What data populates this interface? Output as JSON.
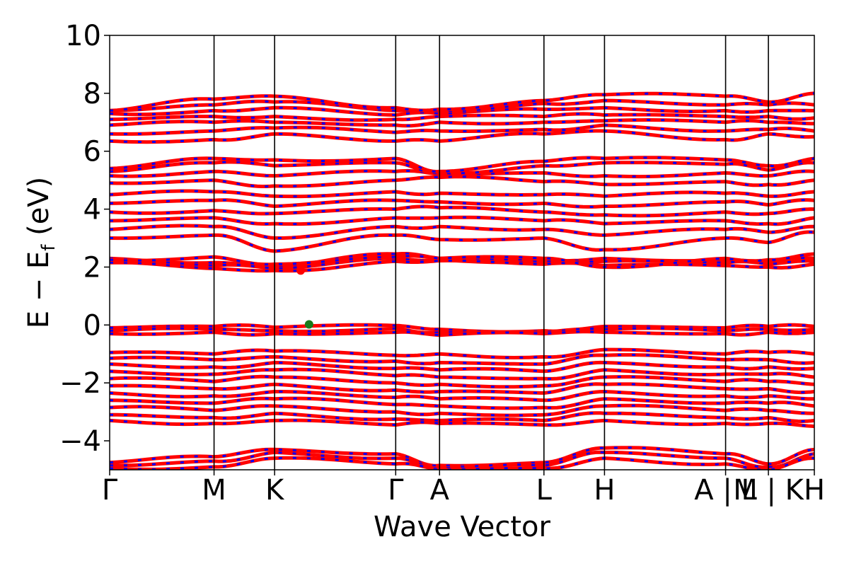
{
  "chart_data": {
    "type": "line",
    "title": "",
    "xlabel": "Wave Vector",
    "ylabel": "E − Ef (eV)",
    "ylabel_main": "E − E",
    "ylabel_sub": "f",
    "ylabel_tail": " (eV)",
    "xlim": [
      0,
      6.75
    ],
    "ylim": [
      -5,
      10
    ],
    "y_ticks": [
      -4,
      -2,
      0,
      2,
      4,
      6,
      8,
      10
    ],
    "y_tick_labels": [
      "−4",
      "−2",
      "0",
      "2",
      "4",
      "6",
      "8",
      "10"
    ],
    "kpoints": [
      {
        "label": "Γ",
        "x": 0.0
      },
      {
        "label": "M",
        "x": 1.0
      },
      {
        "label": "K",
        "x": 1.58
      },
      {
        "label": "Γ",
        "x": 2.74
      },
      {
        "label": "A",
        "x": 3.16
      },
      {
        "label": "L",
        "x": 4.16
      },
      {
        "label": "H",
        "x": 4.74
      },
      {
        "label": "A | L",
        "x": 5.9
      },
      {
        "label": "M | K",
        "x": 6.31
      },
      {
        "label": "H",
        "x": 6.75
      }
    ],
    "band_colors": [
      "#ff0000",
      "#0000ff"
    ],
    "markers": [
      {
        "name": "CBM",
        "x": 1.83,
        "y": 1.88,
        "color": "#ff0000"
      },
      {
        "name": "VBM",
        "x": 1.91,
        "y": 0.02,
        "color": "#1a7a1a"
      }
    ],
    "bands": [
      {
        "group": "semicore",
        "values": [
          -4.75,
          -4.55,
          -4.3,
          -4.45,
          -4.85,
          -4.75,
          -4.25,
          -4.45,
          -4.8,
          -4.3,
          -4.75
        ]
      },
      {
        "group": "semicore",
        "values": [
          -4.85,
          -4.7,
          -4.4,
          -4.6,
          -4.95,
          -4.85,
          -4.4,
          -4.6,
          -4.9,
          -4.45,
          -4.85
        ]
      },
      {
        "group": "semicore",
        "values": [
          -4.95,
          -4.9,
          -4.6,
          -4.8,
          -5.0,
          -4.95,
          -4.6,
          -4.8,
          -5.0,
          -4.6,
          -4.95
        ]
      },
      {
        "group": "valence",
        "values": [
          -0.95,
          -1.0,
          -0.9,
          -1.05,
          -1.0,
          -1.1,
          -0.85,
          -1.0,
          -0.95,
          -1.0,
          -0.9
        ]
      },
      {
        "group": "valence",
        "values": [
          -1.15,
          -1.2,
          -1.1,
          -1.25,
          -1.3,
          -1.35,
          -1.05,
          -1.2,
          -1.2,
          -1.3,
          -1.15
        ]
      },
      {
        "group": "valence",
        "values": [
          -1.35,
          -1.45,
          -1.3,
          -1.5,
          -1.55,
          -1.6,
          -1.3,
          -1.45,
          -1.45,
          -1.5,
          -1.4
        ]
      },
      {
        "group": "valence",
        "values": [
          -1.6,
          -1.7,
          -1.55,
          -1.75,
          -1.8,
          -1.85,
          -1.55,
          -1.7,
          -1.7,
          -1.8,
          -1.65
        ]
      },
      {
        "group": "valence",
        "values": [
          -1.85,
          -1.95,
          -1.8,
          -2.0,
          -2.05,
          -2.1,
          -1.8,
          -1.95,
          -1.95,
          -2.05,
          -1.9
        ]
      },
      {
        "group": "valence",
        "values": [
          -2.1,
          -2.2,
          -2.05,
          -2.25,
          -2.3,
          -2.35,
          -2.05,
          -2.2,
          -2.2,
          -2.3,
          -2.15
        ]
      },
      {
        "group": "valence",
        "values": [
          -2.35,
          -2.45,
          -2.3,
          -2.5,
          -2.55,
          -2.6,
          -2.3,
          -2.45,
          -2.45,
          -2.55,
          -2.4
        ]
      },
      {
        "group": "valence",
        "values": [
          -2.6,
          -2.7,
          -2.55,
          -2.75,
          -2.8,
          -2.85,
          -2.55,
          -2.7,
          -2.7,
          -2.8,
          -2.65
        ]
      },
      {
        "group": "valence",
        "values": [
          -2.85,
          -2.95,
          -2.8,
          -3.0,
          -3.05,
          -3.1,
          -2.8,
          -2.95,
          -2.95,
          -3.05,
          -2.9
        ]
      },
      {
        "group": "valence",
        "values": [
          -3.1,
          -3.2,
          -3.05,
          -3.25,
          -3.3,
          -3.3,
          -3.05,
          -3.2,
          -3.2,
          -3.3,
          -3.15
        ]
      },
      {
        "group": "valence",
        "values": [
          -3.3,
          -3.4,
          -3.3,
          -3.45,
          -3.4,
          -3.45,
          -3.3,
          -3.4,
          -3.4,
          -3.5,
          -3.35
        ]
      },
      {
        "group": "vbm",
        "values": [
          -0.1,
          -0.05,
          -0.08,
          -0.02,
          -0.15,
          -0.2,
          -0.05,
          -0.1,
          -0.05,
          -0.05,
          -0.05
        ]
      },
      {
        "group": "vbm",
        "values": [
          -0.2,
          -0.15,
          -0.2,
          -0.12,
          -0.25,
          -0.25,
          -0.15,
          -0.2,
          -0.15,
          -0.15,
          -0.15
        ]
      },
      {
        "group": "vbm",
        "values": [
          -0.3,
          -0.25,
          -0.3,
          -0.25,
          -0.35,
          -0.3,
          -0.25,
          -0.3,
          -0.25,
          -0.25,
          -0.25
        ]
      },
      {
        "group": "conduction",
        "values": [
          2.3,
          2.15,
          2.0,
          2.45,
          2.3,
          2.25,
          2.3,
          2.25,
          2.2,
          2.3,
          2.25
        ]
      },
      {
        "group": "conduction",
        "values": [
          2.2,
          2.05,
          1.95,
          2.3,
          2.25,
          2.2,
          2.2,
          2.15,
          2.1,
          2.2,
          2.15
        ]
      },
      {
        "group": "conduction",
        "values": [
          2.15,
          1.95,
          1.88,
          2.2,
          2.22,
          2.1,
          2.05,
          2.05,
          2.0,
          2.1,
          2.05
        ]
      },
      {
        "group": "conduction",
        "values": [
          2.25,
          2.35,
          2.1,
          2.35,
          2.3,
          2.3,
          2.0,
          2.3,
          2.25,
          2.45,
          2.3
        ]
      },
      {
        "group": "conduction",
        "values": [
          3.0,
          3.1,
          2.55,
          3.1,
          2.95,
          3.0,
          2.6,
          3.0,
          2.85,
          3.2,
          3.0
        ]
      },
      {
        "group": "conduction",
        "values": [
          3.3,
          3.4,
          3.0,
          3.4,
          3.4,
          3.3,
          3.1,
          3.3,
          3.2,
          3.4,
          3.3
        ]
      },
      {
        "group": "conduction",
        "values": [
          3.6,
          3.7,
          3.5,
          3.7,
          3.7,
          3.6,
          3.5,
          3.6,
          3.5,
          3.7,
          3.6
        ]
      },
      {
        "group": "conduction",
        "values": [
          3.9,
          3.95,
          3.85,
          4.0,
          4.05,
          3.9,
          3.8,
          3.9,
          3.85,
          4.0,
          3.9
        ]
      },
      {
        "group": "conduction",
        "values": [
          4.2,
          4.3,
          4.1,
          4.3,
          4.25,
          4.2,
          4.1,
          4.25,
          4.15,
          4.3,
          4.2
        ]
      },
      {
        "group": "conduction",
        "values": [
          4.5,
          4.6,
          4.45,
          4.6,
          4.55,
          4.5,
          4.45,
          4.55,
          4.45,
          4.6,
          4.5
        ]
      },
      {
        "group": "conduction",
        "values": [
          4.9,
          5.0,
          4.8,
          5.0,
          5.1,
          4.95,
          4.85,
          4.95,
          4.85,
          5.0,
          4.9
        ]
      },
      {
        "group": "conduction",
        "values": [
          5.15,
          5.3,
          5.15,
          5.3,
          5.2,
          5.25,
          5.15,
          5.25,
          5.15,
          5.3,
          5.2
        ]
      },
      {
        "group": "conduction",
        "values": [
          5.3,
          5.6,
          5.5,
          5.6,
          5.25,
          5.5,
          5.6,
          5.55,
          5.35,
          5.6,
          5.55
        ]
      },
      {
        "group": "conduction",
        "values": [
          5.4,
          5.75,
          5.7,
          5.75,
          5.3,
          5.65,
          5.75,
          5.7,
          5.5,
          5.75,
          5.7
        ]
      },
      {
        "group": "upper",
        "values": [
          6.35,
          6.4,
          6.6,
          6.35,
          6.35,
          6.6,
          6.7,
          6.4,
          6.6,
          6.5,
          6.4
        ]
      },
      {
        "group": "upper",
        "values": [
          6.6,
          6.7,
          6.8,
          6.65,
          6.7,
          6.75,
          6.9,
          6.7,
          6.75,
          6.7,
          6.6
        ]
      },
      {
        "group": "upper",
        "values": [
          6.9,
          7.0,
          7.0,
          6.9,
          7.0,
          7.0,
          7.05,
          7.0,
          7.0,
          6.95,
          6.9
        ]
      },
      {
        "group": "upper",
        "values": [
          7.1,
          7.2,
          7.2,
          7.1,
          7.2,
          7.2,
          7.25,
          7.2,
          7.2,
          7.15,
          7.1
        ]
      },
      {
        "group": "upper",
        "values": [
          7.3,
          7.4,
          7.5,
          7.25,
          7.3,
          7.45,
          7.5,
          7.4,
          7.4,
          7.4,
          7.35
        ]
      },
      {
        "group": "upper",
        "values": [
          7.4,
          7.6,
          7.7,
          7.4,
          7.4,
          7.65,
          7.75,
          7.6,
          7.6,
          7.6,
          7.6
        ]
      },
      {
        "group": "upper",
        "values": [
          7.4,
          7.8,
          7.9,
          7.5,
          7.45,
          7.75,
          7.95,
          7.9,
          7.7,
          8.0,
          8.05
        ]
      }
    ]
  }
}
